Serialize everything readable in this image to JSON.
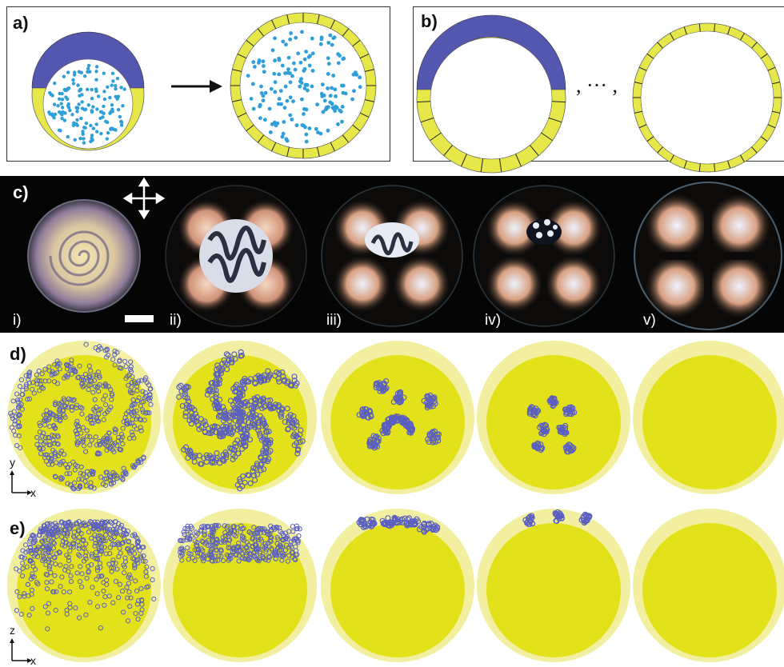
{
  "panels": {
    "a": {
      "label": "a)"
    },
    "b": {
      "label": "b)",
      "ellipsis": ", ··· ,"
    },
    "c": {
      "label": "c)",
      "subpanels": [
        "i)",
        "ii)",
        "iii)",
        "iv)",
        "v)"
      ]
    },
    "d": {
      "label": "d)",
      "axes": {
        "vertical": "y",
        "horizontal": "x"
      }
    },
    "e": {
      "label": "e)",
      "axes": {
        "vertical": "z",
        "horizontal": "x"
      }
    }
  },
  "colors": {
    "shell": "#e6e84a",
    "shell_light": "#f2f0a0",
    "core": "#e3e21a",
    "cap": "#5457b0",
    "particle": "#2f9fd8",
    "defect": "#5a5fc0"
  },
  "icons": {
    "polarizer": "crossed-polarizers-icon",
    "scale": "scale-bar-icon"
  }
}
